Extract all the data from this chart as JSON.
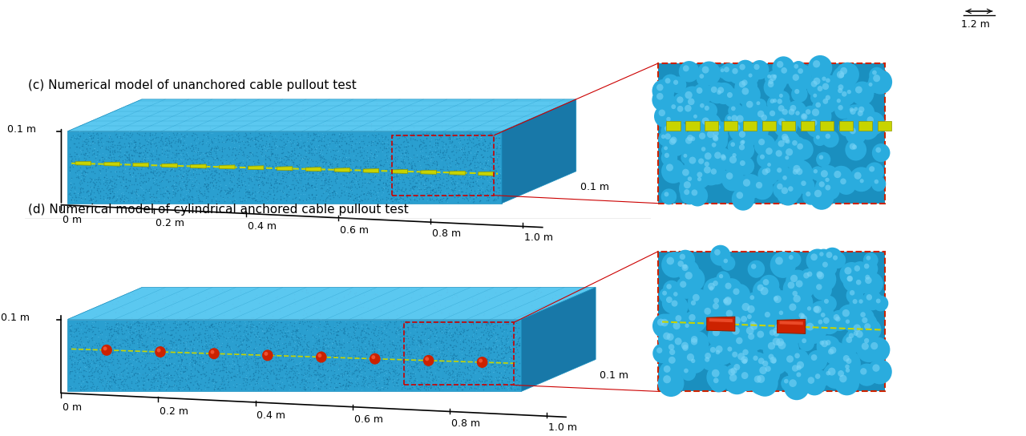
{
  "fig_width": 12.8,
  "fig_height": 5.44,
  "bg_color": "#ffffff",
  "panel_c_title": "(c) Numerical model of unanchored cable pullout test",
  "panel_d_title": "(d) Numerical model of cylindrical anchored cable pullout test",
  "top_label": "1.2 m",
  "axis_labels_c": {
    "height": "0.1 m",
    "x_ticks": [
      "0 m",
      "0.2 m",
      "0.4 m",
      "0.6 m",
      "0.8 m",
      "1.0 m"
    ],
    "side": "0.1 m"
  },
  "axis_labels_d": {
    "height": "0.1 m",
    "x_ticks": [
      "0 m",
      "0.2 m",
      "0.4 m",
      "0.6 m",
      "0.8 m",
      "1.0 m"
    ],
    "side": "0.1 m"
  },
  "box_color_main": "#1a8fbf",
  "box_color_top": "#4db8e8",
  "box_color_side": "#1570a0",
  "box_edge_color": "#2090c0",
  "cable_color": "#c8d400",
  "anchor_color": "#cc2200",
  "inset_border_color": "#cc2200",
  "inset_bg": "#1a8fbf",
  "text_color": "#000000",
  "title_fontsize": 11,
  "label_fontsize": 9,
  "font_family": "DejaVu Sans"
}
